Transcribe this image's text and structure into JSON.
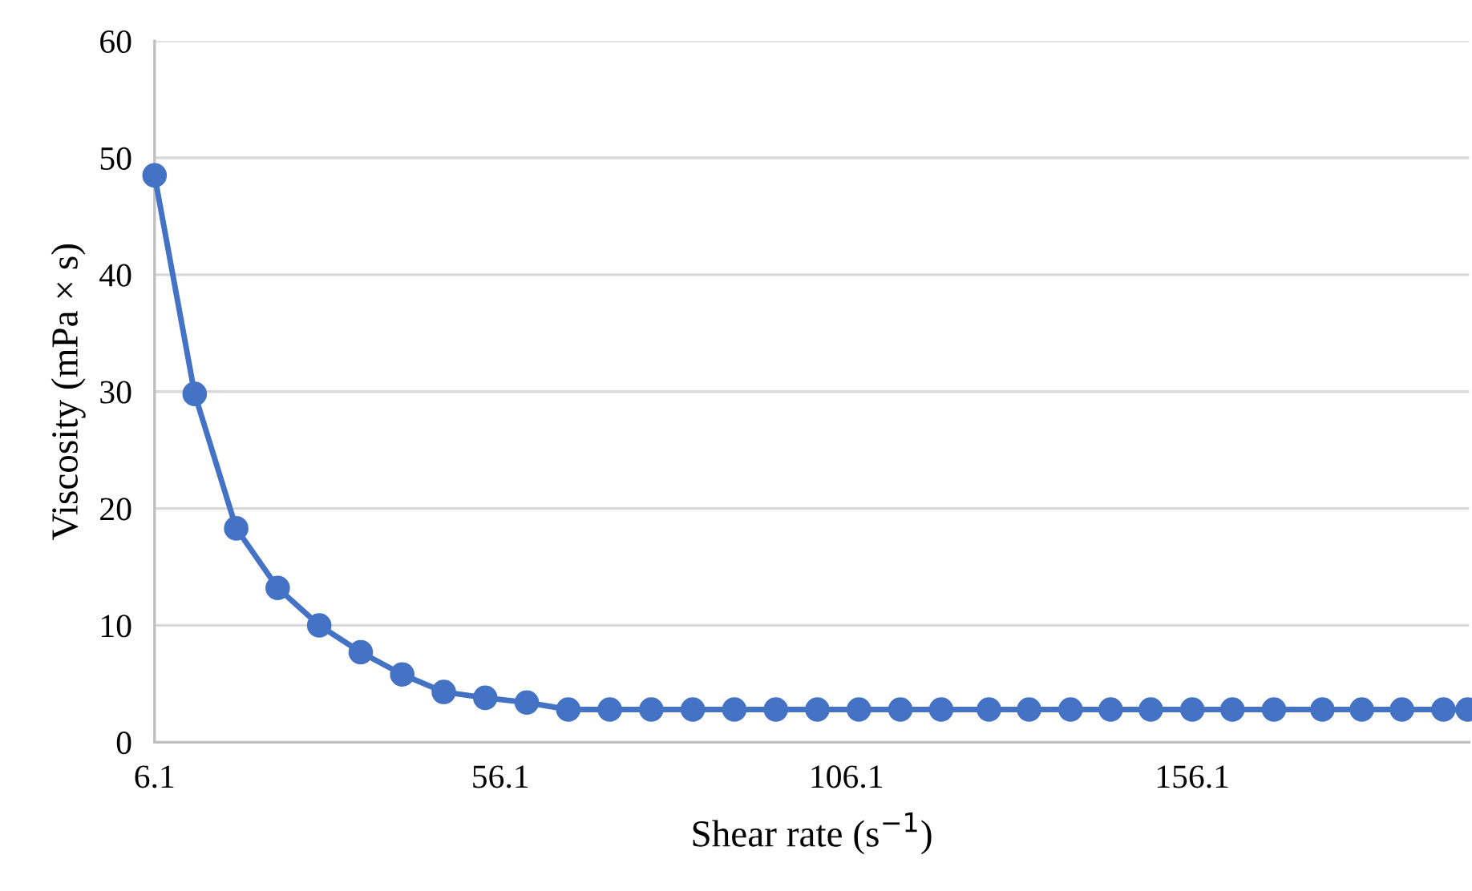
{
  "chart_data": {
    "type": "line",
    "xlabel": "Shear rate (s$^{−1}$)",
    "ylabel": "Viscosity (mPa × s)",
    "x": [
      6.1,
      11.9,
      17.9,
      23.9,
      29.9,
      35.9,
      41.9,
      47.9,
      53.9,
      59.9,
      65.9,
      71.9,
      77.9,
      83.9,
      89.9,
      95.9,
      101.9,
      107.9,
      113.9,
      119.8,
      126.7,
      132.5,
      138.5,
      144.3,
      150.1,
      156.1,
      161.9,
      167.9,
      174.9,
      180.6,
      186.4,
      192.4,
      195.9
    ],
    "series": [
      {
        "color": "#4472c4",
        "values": [
          48.5,
          29.8,
          18.3,
          13.2,
          10.0,
          7.7,
          5.8,
          4.3,
          3.8,
          3.4,
          2.8,
          2.8,
          2.8,
          2.8,
          2.8,
          2.8,
          2.8,
          2.8,
          2.8,
          2.8,
          2.8,
          2.8,
          2.8,
          2.8,
          2.8,
          2.8,
          2.8,
          2.8,
          2.8,
          2.8,
          2.8,
          2.8,
          2.8
        ]
      }
    ],
    "xlim": [
      6.1,
      196.1
    ],
    "xticks": [
      6.1,
      56.1,
      106.1,
      156.1
    ],
    "ylim": [
      0,
      60
    ],
    "yticks": [
      0,
      10,
      20,
      30,
      40,
      50,
      60
    ],
    "grid": "y",
    "marker": "circle",
    "line_style": "solid",
    "legend": false
  }
}
